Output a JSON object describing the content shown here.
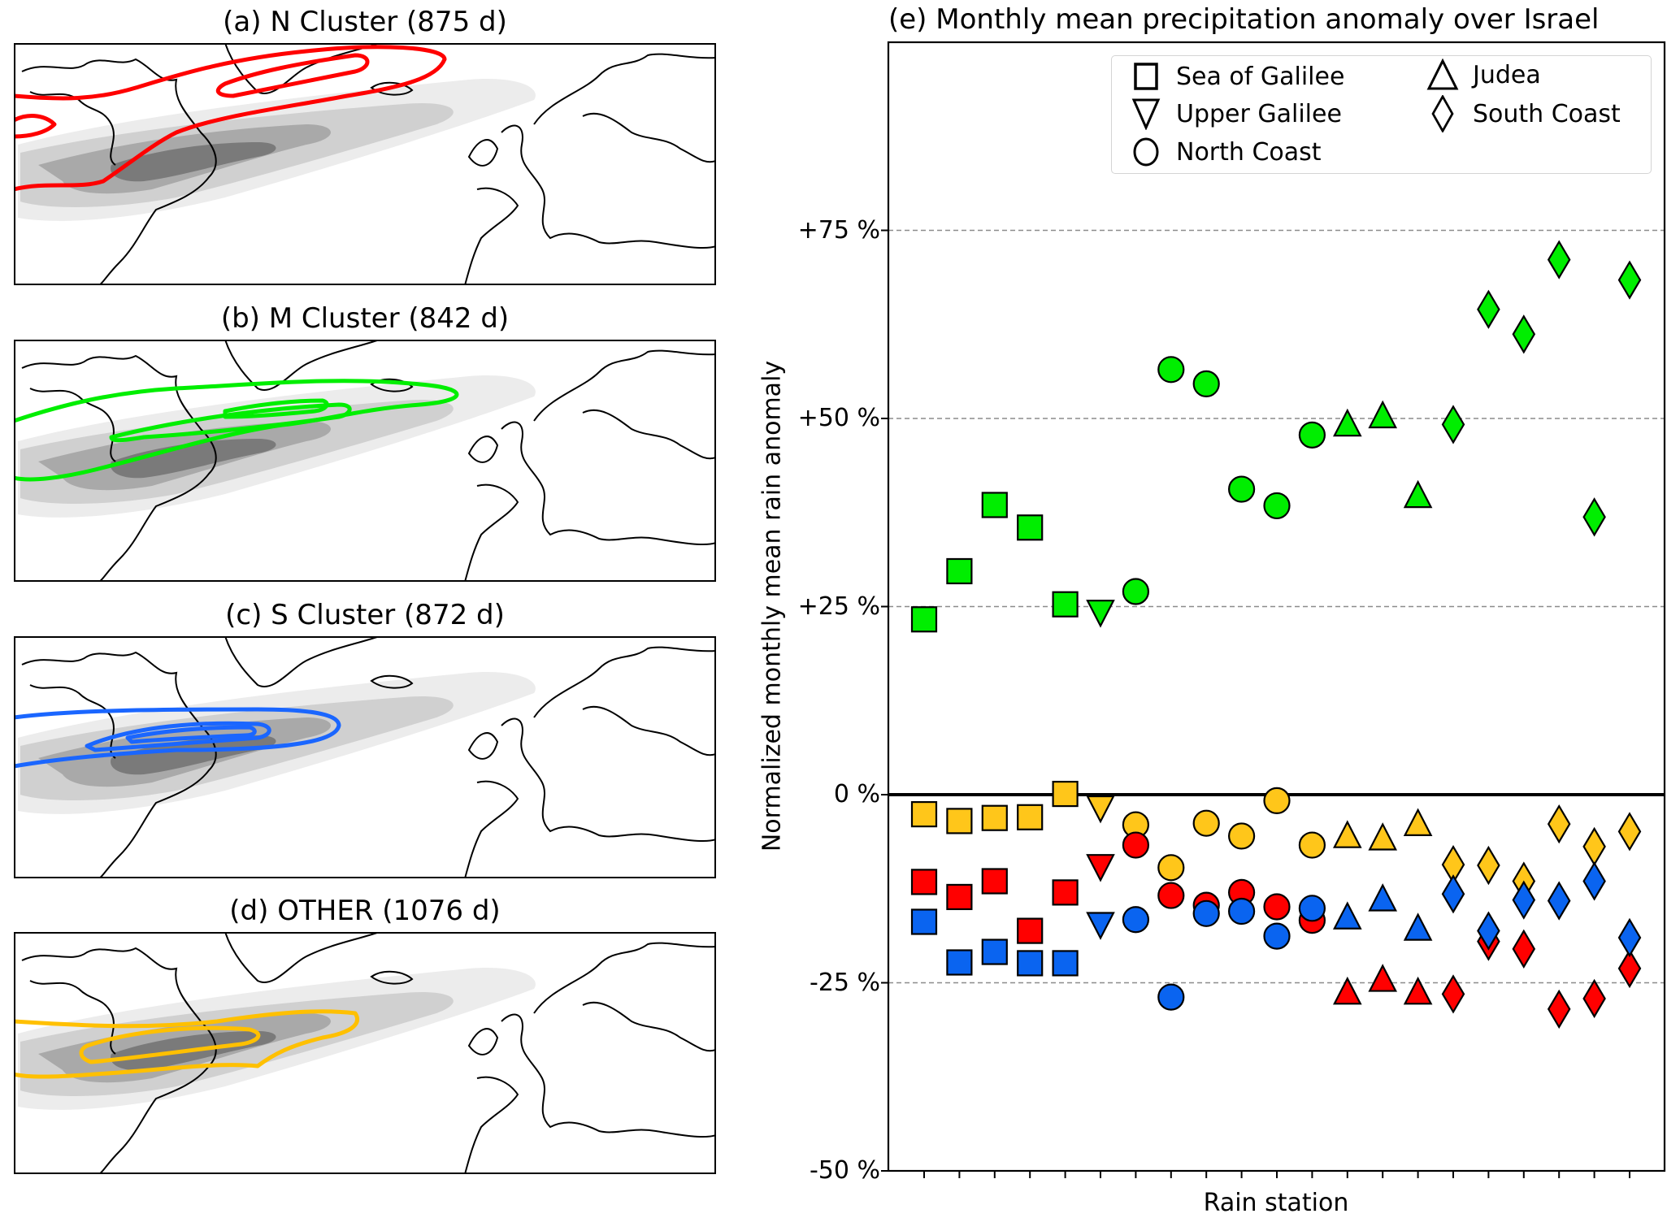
{
  "maps": [
    {
      "title": "(a) N Cluster (875 d)",
      "cluster": "N",
      "contour_color": "#ff0000"
    },
    {
      "title": "(b) M Cluster (842 d)",
      "cluster": "M",
      "contour_color": "#00ee00"
    },
    {
      "title": "(c) S Cluster (872 d)",
      "cluster": "S",
      "contour_color": "#1a66ff"
    },
    {
      "title": "(d) OTHER (1076 d)",
      "cluster": "OTHER",
      "contour_color": "#ffc000"
    }
  ],
  "chart_data": {
    "type": "scatter",
    "title": "(e) Monthly mean precipitation anomaly over Israel",
    "xlabel": "Rain station",
    "ylabel": "Normalized monthly mean rain anomaly",
    "ylim": [
      -50,
      100
    ],
    "yticks": [
      -50,
      -25,
      0,
      25,
      50,
      75
    ],
    "ytick_labels": [
      "-50 %",
      "-25 %",
      "0 %",
      "+25 %",
      "+50 %",
      "+75 %"
    ],
    "grid": "horizontal dashed at ±25%, ±50%, +75%",
    "zero_line": true,
    "x": [
      1,
      2,
      3,
      4,
      5,
      6,
      7,
      8,
      9,
      10,
      11,
      12,
      13,
      14,
      15,
      16,
      17,
      18,
      19,
      20,
      21
    ],
    "x_tick_labels": [],
    "station_region": [
      "Sea of Galilee",
      "Sea of Galilee",
      "Sea of Galilee",
      "Sea of Galilee",
      "Sea of Galilee",
      "Upper Galilee",
      "North Coast",
      "North Coast",
      "North Coast",
      "North Coast",
      "North Coast",
      "North Coast",
      "Judea",
      "Judea",
      "Judea",
      "South Coast",
      "South Coast",
      "South Coast",
      "South Coast",
      "South Coast",
      "South Coast"
    ],
    "legend": {
      "placement": "top-right",
      "entries": [
        {
          "label": "Sea of Galilee",
          "marker": "square"
        },
        {
          "label": "Upper Galilee",
          "marker": "triangle-down"
        },
        {
          "label": "North Coast",
          "marker": "circle"
        },
        {
          "label": "Judea",
          "marker": "triangle-up"
        },
        {
          "label": "South Coast",
          "marker": "diamond"
        }
      ]
    },
    "series": [
      {
        "name": "M Cluster",
        "color": "#00ee00",
        "values": [
          23.3,
          29.7,
          38.5,
          35.5,
          25.3,
          24.6,
          27.0,
          56.5,
          54.6,
          40.6,
          38.4,
          47.8,
          48.9,
          50.0,
          39.4,
          49.2,
          64.5,
          61.2,
          71.1,
          36.9,
          68.4
        ]
      },
      {
        "name": "OTHER",
        "color": "#ffc61a",
        "values": [
          -2.6,
          -3.5,
          -3.1,
          -3.0,
          0.1,
          -1.4,
          -4.0,
          -9.7,
          -3.8,
          -5.5,
          -0.8,
          -6.7,
          -5.8,
          -6.1,
          -4.2,
          -9.3,
          -9.4,
          -11.5,
          -3.9,
          -6.9,
          -4.9
        ]
      },
      {
        "name": "N Cluster",
        "color": "#ff0000",
        "values": [
          -11.6,
          -13.6,
          -11.5,
          -18.1,
          -13.0,
          -9.2,
          -6.7,
          -13.4,
          -14.7,
          -13.0,
          -14.9,
          -16.7,
          -26.6,
          -24.9,
          -26.6,
          -26.5,
          -19.5,
          -20.5,
          -28.5,
          -27.1,
          -23.1
        ]
      },
      {
        "name": "S Cluster",
        "color": "#0a64f0",
        "values": [
          -16.9,
          -22.3,
          -20.9,
          -22.4,
          -22.4,
          -16.9,
          -16.6,
          -26.9,
          -15.8,
          -15.5,
          -18.8,
          -15.1,
          -16.6,
          -14.2,
          -18.1,
          -13.2,
          -18.1,
          -14.0,
          -14.1,
          -11.5,
          -19.0
        ]
      }
    ]
  }
}
